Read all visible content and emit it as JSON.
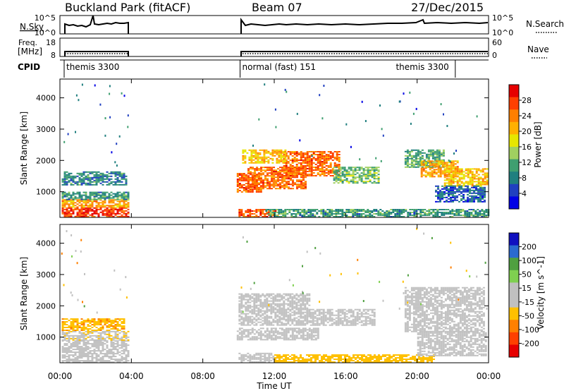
{
  "header": {
    "station": "Buckland Park (fitACF)",
    "beam": "Beam 07",
    "date": "27/Dec/2015"
  },
  "control_panels": {
    "nsky": {
      "label": "N.Sky",
      "ticks": [
        "10^5",
        "10^0"
      ],
      "right_label": "N.Search",
      "right_ticks": [
        "10^5",
        "10^0"
      ]
    },
    "freq": {
      "label_line1": "Freq.",
      "label_line2": "[MHz]",
      "ticks": [
        "18",
        "8"
      ],
      "right_label": "Nave",
      "right_ticks": [
        "60",
        "0"
      ]
    },
    "cpid": {
      "label": "CPID",
      "modes": [
        {
          "name": "themis 3300",
          "start_hour": 0.0,
          "end_hour": 3.85
        },
        {
          "name": "normal (fast) 151",
          "start_hour": 9.85,
          "end_hour": 21.9
        },
        {
          "name": "themis 3300",
          "start_hour": 21.9,
          "end_hour": 24.0
        }
      ]
    }
  },
  "x_axis": {
    "label": "Time UT",
    "tick_labels": [
      "00:00",
      "04:00",
      "08:00",
      "12:00",
      "16:00",
      "20:00",
      "00:00"
    ],
    "tick_hours": [
      0,
      4,
      8,
      12,
      16,
      20,
      24
    ],
    "range_hours": [
      0,
      24
    ]
  },
  "chart_data": [
    {
      "type": "heatmap",
      "panel": "power",
      "ylabel": "Slant Range [km]",
      "y_ticks": [
        1000,
        2000,
        3000,
        4000
      ],
      "ylim": [
        180,
        4600
      ],
      "xlim_hours": [
        0,
        24
      ],
      "colorbar": {
        "label": "Power [dB]",
        "tick_labels": [
          "28",
          "24",
          "20",
          "16",
          "12",
          "8",
          "4"
        ],
        "colors": [
          "#e60000",
          "#ff4000",
          "#ff7f00",
          "#ffb000",
          "#e6e600",
          "#a0d060",
          "#3f9f70",
          "#207f7f",
          "#2040c0",
          "#0000e6"
        ]
      },
      "regions": [
        {
          "t0": 0.1,
          "t1": 3.8,
          "r0": 200,
          "r1": 500,
          "value": 28
        },
        {
          "t0": 0.1,
          "t1": 3.8,
          "r0": 500,
          "r1": 760,
          "value": 22
        },
        {
          "t0": 0.1,
          "t1": 3.8,
          "r0": 760,
          "r1": 1000,
          "value": 10
        },
        {
          "t0": 0.1,
          "t1": 3.7,
          "r0": 1200,
          "r1": 1650,
          "value": 9
        },
        {
          "t0": 9.9,
          "t1": 11.3,
          "r0": 1000,
          "r1": 1600,
          "value": 26
        },
        {
          "t0": 10.5,
          "t1": 13.8,
          "r0": 1100,
          "r1": 1800,
          "value": 25
        },
        {
          "t0": 12.5,
          "t1": 15.6,
          "r0": 1500,
          "r1": 2300,
          "value": 25
        },
        {
          "t0": 10.2,
          "t1": 12.6,
          "r0": 1900,
          "r1": 2350,
          "value": 20
        },
        {
          "t0": 15.3,
          "t1": 17.8,
          "r0": 1300,
          "r1": 1800,
          "value": 13
        },
        {
          "t0": 10.0,
          "t1": 12.2,
          "r0": 200,
          "r1": 450,
          "value": 26
        },
        {
          "t0": 11.5,
          "t1": 24.0,
          "r0": 200,
          "r1": 450,
          "value": 10
        },
        {
          "t0": 19.3,
          "t1": 21.5,
          "r0": 1800,
          "r1": 2350,
          "value": 12
        },
        {
          "t0": 20.2,
          "t1": 22.3,
          "r0": 1500,
          "r1": 2000,
          "value": 22
        },
        {
          "t0": 21.5,
          "t1": 23.9,
          "r0": 1200,
          "r1": 1750,
          "value": 20
        },
        {
          "t0": 21.0,
          "t1": 23.8,
          "r0": 700,
          "r1": 1200,
          "value": 6
        }
      ]
    },
    {
      "type": "heatmap",
      "panel": "velocity",
      "ylabel": "Slant Range [km]",
      "y_ticks": [
        1000,
        2000,
        3000,
        4000
      ],
      "ylim": [
        180,
        4600
      ],
      "xlim_hours": [
        0,
        24
      ],
      "colorbar": {
        "label": "Velocity [m s^-1]",
        "tick_labels": [
          "200",
          "100",
          "50",
          "15",
          "-15",
          "-50",
          "-100",
          "-200"
        ],
        "colors": [
          "#1010c0",
          "#2a6ad0",
          "#4fa040",
          "#7fd050",
          "#c0c0c0",
          "#c0c0c0",
          "#ffc000",
          "#ff8000",
          "#ff4000",
          "#e60000"
        ]
      },
      "regions": [
        {
          "t0": 0.1,
          "t1": 3.8,
          "r0": 200,
          "r1": 900,
          "value": 0
        },
        {
          "t0": 0.1,
          "t1": 3.8,
          "r0": 900,
          "r1": 1200,
          "value": -40
        },
        {
          "t0": 0.1,
          "t1": 3.6,
          "r0": 1200,
          "r1": 1600,
          "value": -90
        },
        {
          "t0": 9.9,
          "t1": 14.5,
          "r0": 900,
          "r1": 1300,
          "value": 0
        },
        {
          "t0": 10.0,
          "t1": 14.0,
          "r0": 1400,
          "r1": 2400,
          "value": -30
        },
        {
          "t0": 14.0,
          "t1": 17.6,
          "r0": 1400,
          "r1": 1900,
          "value": 0
        },
        {
          "t0": 10.0,
          "t1": 12.0,
          "r0": 200,
          "r1": 500,
          "value": -30
        },
        {
          "t0": 12.0,
          "t1": 21.0,
          "r0": 200,
          "r1": 450,
          "value": -70
        },
        {
          "t0": 19.3,
          "t1": 23.8,
          "r0": 1200,
          "r1": 2600,
          "value": 0
        },
        {
          "t0": 20.0,
          "t1": 23.9,
          "r0": 400,
          "r1": 1200,
          "value": 0
        }
      ]
    }
  ]
}
